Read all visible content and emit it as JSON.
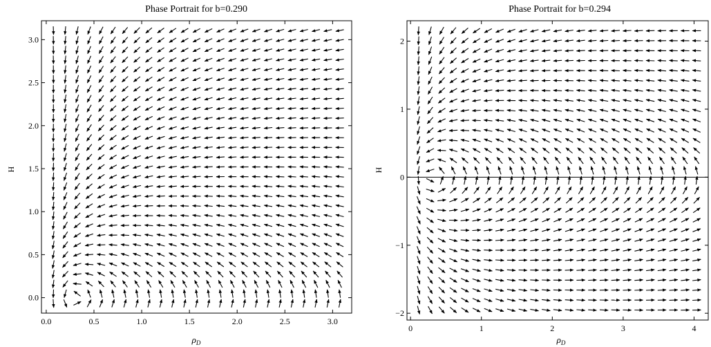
{
  "chart_data": [
    {
      "type": "vector_field",
      "title": "Phase Portrait for b=0.290",
      "xlabel": "ρD",
      "ylabel": "H",
      "xlim": [
        -0.05,
        3.2
      ],
      "ylim": [
        -0.18,
        3.22
      ],
      "xticks": [
        "0.0",
        "0.5",
        "1.0",
        "1.5",
        "2.0",
        "2.5",
        "3.0"
      ],
      "xtick_values": [
        0,
        0.5,
        1.0,
        1.5,
        2.0,
        2.5,
        3.0
      ],
      "yticks": [
        "0.0",
        "0.5",
        "1.0",
        "1.5",
        "2.0",
        "2.5",
        "3.0"
      ],
      "ytick_values": [
        0,
        0.5,
        1.0,
        1.5,
        2.0,
        2.5,
        3.0
      ],
      "b": 0.29,
      "grid": false,
      "axis_line_h0": false
    },
    {
      "type": "vector_field",
      "title": "Phase Portrait for b=0.294",
      "xlabel": "ρD",
      "ylabel": "H",
      "xlim": [
        -0.05,
        4.2
      ],
      "ylim": [
        -2.1,
        2.3
      ],
      "xticks": [
        "0",
        "1",
        "2",
        "3",
        "4"
      ],
      "xtick_values": [
        0,
        1,
        2,
        3,
        4
      ],
      "yticks": [
        "−2",
        "−1",
        "0",
        "1",
        "2"
      ],
      "ytick_values": [
        -2,
        -1,
        0,
        1,
        2
      ],
      "b": 0.294,
      "grid": false,
      "axis_line_h0": true
    }
  ]
}
